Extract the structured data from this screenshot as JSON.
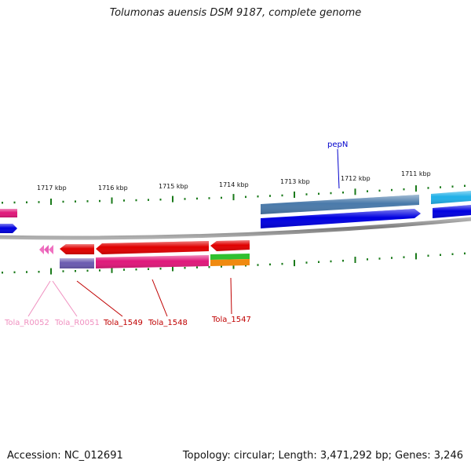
{
  "title": "Tolumonas auensis DSM 9187, complete genome",
  "footer": {
    "accession": "Accession: NC_012691",
    "summary": "Topology: circular; Length: 3,471,292 bp; Genes: 3,246"
  },
  "colors": {
    "backbone": "#8a8a8a",
    "tick": "#1a7a1a",
    "gene_red": "#e00000",
    "trna_pink": "#f070c0",
    "cds_magenta": "#e0187a",
    "steelblue": "#5080b0",
    "blue": "#0000e0",
    "cyan": "#20b0e8",
    "label_red": "#c00000",
    "label_pink": "#f090c0",
    "label_blue": "#0000cc"
  },
  "scale_labels": [
    "1717 kbp",
    "1716 kbp",
    "1715 kbp",
    "1714 kbp",
    "1713 kbp",
    "1712 kbp",
    "1711 kbp"
  ],
  "gene_labels": [
    "Tola_R0052",
    "Tola_R0051",
    "Tola_1549",
    "Tola_1548",
    "Tola_1547",
    "pepN"
  ]
}
